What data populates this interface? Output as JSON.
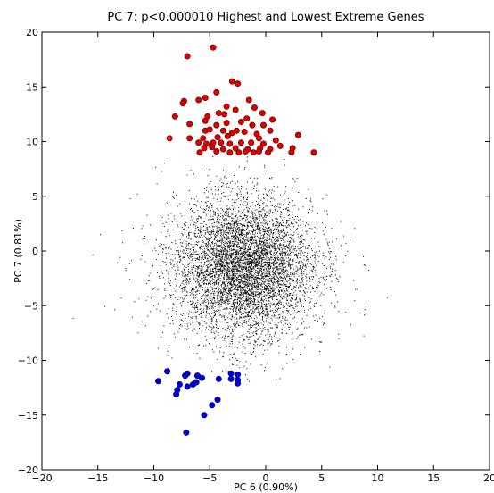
{
  "chart_data": {
    "type": "scatter",
    "title": "PC 7: p<0.000010 Highest and Lowest Extreme Genes",
    "xlabel": "PC 6 (0.90%)",
    "ylabel": "PC 7 (0.81%)",
    "xlim": [
      -20,
      20
    ],
    "ylim": [
      -20,
      20
    ],
    "x_ticks": [
      -20,
      -15,
      -10,
      -5,
      0,
      5,
      10,
      15,
      20
    ],
    "y_ticks": [
      -20,
      -15,
      -10,
      -5,
      0,
      5,
      10,
      15,
      20
    ],
    "grid": false,
    "legend": "none",
    "background_cloud": {
      "description_color": "#000000",
      "center": [
        -2,
        -1.5
      ],
      "spread": [
        3.0,
        3.0
      ]
    },
    "series": [
      {
        "color": "#dd0000",
        "edge_color": "#550000",
        "points": [
          [
            -4.7,
            18.6
          ],
          [
            -7.0,
            17.8
          ],
          [
            -3.0,
            15.5
          ],
          [
            -2.5,
            15.3
          ],
          [
            -4.4,
            14.5
          ],
          [
            -7.3,
            13.7
          ],
          [
            -7.4,
            13.5
          ],
          [
            -6.0,
            13.8
          ],
          [
            -5.4,
            14.0
          ],
          [
            -1.5,
            13.8
          ],
          [
            -3.5,
            13.2
          ],
          [
            -1.0,
            13.1
          ],
          [
            -2.7,
            12.9
          ],
          [
            -4.2,
            12.6
          ],
          [
            -3.7,
            12.5
          ],
          [
            -5.2,
            12.3
          ],
          [
            -0.3,
            12.6
          ],
          [
            -8.1,
            12.3
          ],
          [
            -5.4,
            11.9
          ],
          [
            -1.7,
            12.1
          ],
          [
            0.6,
            12.0
          ],
          [
            -2.2,
            11.8
          ],
          [
            -6.8,
            11.6
          ],
          [
            -3.5,
            11.7
          ],
          [
            -4.4,
            11.5
          ],
          [
            -1.2,
            11.5
          ],
          [
            -0.2,
            11.5
          ],
          [
            -5.4,
            11.0
          ],
          [
            -5.0,
            11.1
          ],
          [
            -3.8,
            11.0
          ],
          [
            -2.6,
            11.0
          ],
          [
            0.4,
            11.0
          ],
          [
            -3.0,
            10.8
          ],
          [
            -1.9,
            10.9
          ],
          [
            -0.8,
            10.7
          ],
          [
            2.9,
            10.6
          ],
          [
            -8.6,
            10.3
          ],
          [
            -6.8,
            10.3
          ],
          [
            -5.6,
            10.3
          ],
          [
            -4.3,
            10.4
          ],
          [
            -3.4,
            10.5
          ],
          [
            -0.6,
            10.3
          ],
          [
            0.9,
            10.1
          ],
          [
            -6.0,
            9.9
          ],
          [
            -5.3,
            9.8
          ],
          [
            -4.7,
            9.9
          ],
          [
            -4.0,
            9.9
          ],
          [
            -3.2,
            9.8
          ],
          [
            -2.2,
            9.9
          ],
          [
            -1.3,
            9.9
          ],
          [
            -0.2,
            9.8
          ],
          [
            1.3,
            9.6
          ],
          [
            2.4,
            9.4
          ],
          [
            -5.5,
            9.4
          ],
          [
            -4.8,
            9.5
          ],
          [
            -3.8,
            9.3
          ],
          [
            -2.7,
            9.4
          ],
          [
            -1.6,
            9.3
          ],
          [
            -0.5,
            9.4
          ],
          [
            0.4,
            9.3
          ],
          [
            -5.9,
            9.0
          ],
          [
            -4.4,
            9.1
          ],
          [
            -3.2,
            9.0
          ],
          [
            -2.4,
            9.0
          ],
          [
            -1.8,
            9.1
          ],
          [
            -1.1,
            9.0
          ],
          [
            -0.6,
            9.1
          ],
          [
            0.2,
            9.0
          ],
          [
            2.3,
            9.0
          ],
          [
            4.3,
            9.0
          ]
        ]
      },
      {
        "color": "#0000dd",
        "edge_color": "#000055",
        "points": [
          [
            -8.8,
            -11.0
          ],
          [
            -9.6,
            -11.9
          ],
          [
            -7.0,
            -11.2
          ],
          [
            -7.2,
            -11.4
          ],
          [
            -6.1,
            -11.4
          ],
          [
            -5.7,
            -11.6
          ],
          [
            -3.1,
            -11.2
          ],
          [
            -2.5,
            -11.3
          ],
          [
            -3.1,
            -11.7
          ],
          [
            -2.5,
            -11.8
          ],
          [
            -2.5,
            -12.1
          ],
          [
            -4.2,
            -11.7
          ],
          [
            -7.7,
            -12.2
          ],
          [
            -7.0,
            -12.4
          ],
          [
            -6.5,
            -12.2
          ],
          [
            -6.2,
            -12.0
          ],
          [
            -7.9,
            -12.7
          ],
          [
            -8.0,
            -13.1
          ],
          [
            -4.3,
            -13.6
          ],
          [
            -4.8,
            -14.1
          ],
          [
            -5.5,
            -15.0
          ],
          [
            -7.1,
            -16.6
          ]
        ]
      }
    ]
  }
}
